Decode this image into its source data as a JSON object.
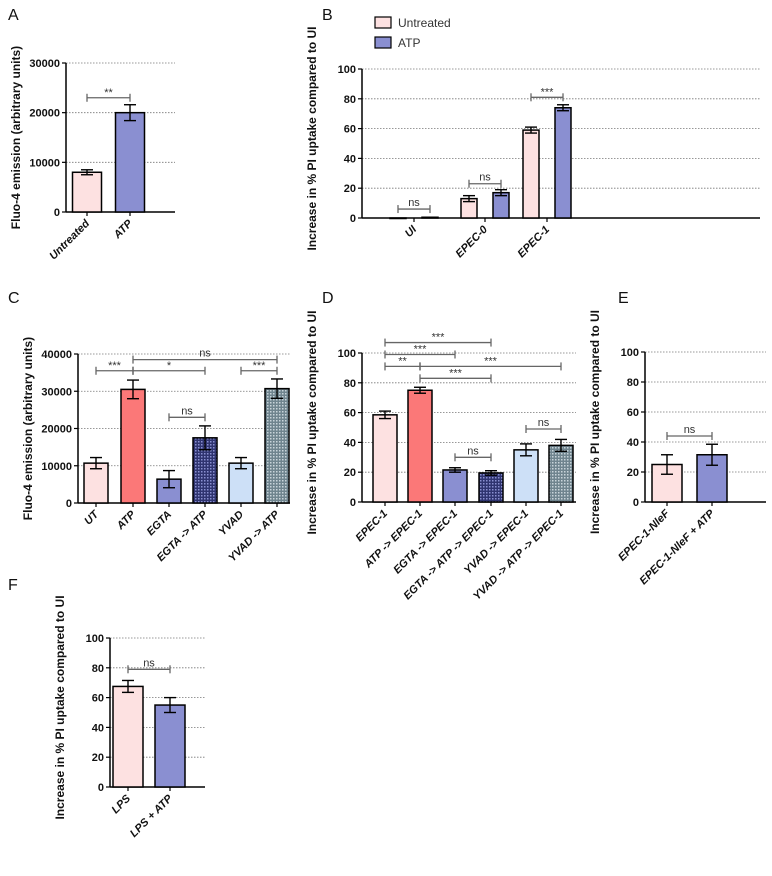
{
  "colors": {
    "pink": "#fde1e1",
    "blue": "#8a8fd1",
    "red": "#fb7878",
    "navy_pattern": "#2f3470",
    "lightblue": "#cde0f7",
    "gray_pattern": "#7f96a0",
    "grid": "#777777",
    "bracket": "#666666"
  },
  "chart_data": [
    {
      "panel": "A",
      "type": "bar",
      "ylabel": "Fluo-4 emission (arbitrary units)",
      "ylim": [
        0,
        30000
      ],
      "yticks": [
        0,
        10000,
        20000,
        30000
      ],
      "grid": true,
      "categories": [
        "Untreated",
        "ATP"
      ],
      "values": [
        8000,
        20000
      ],
      "errors": [
        500,
        1600
      ],
      "fills": [
        "pink",
        "blue"
      ],
      "significance": [
        {
          "from": 0,
          "to": 1,
          "label": "**",
          "y": 23000
        }
      ]
    },
    {
      "panel": "B",
      "type": "bar",
      "ylabel": "Increase in % PI uptake compared to UI",
      "ylim": [
        0,
        100
      ],
      "yticks": [
        0,
        20,
        40,
        60,
        80,
        100
      ],
      "grid": true,
      "legend": {
        "placement": "top",
        "entries": [
          {
            "label": "Untreated",
            "fill": "pink"
          },
          {
            "label": "ATP",
            "fill": "blue"
          }
        ]
      },
      "categories": [
        "UI",
        "EPEC-0",
        "EPEC-1"
      ],
      "series": [
        {
          "name": "Untreated",
          "values": [
            0,
            13,
            59
          ],
          "errors": [
            0,
            2,
            2
          ],
          "fill": "pink"
        },
        {
          "name": "ATP",
          "values": [
            0.5,
            17,
            74
          ],
          "errors": [
            0,
            2,
            2
          ],
          "fill": "blue"
        }
      ],
      "significance": [
        {
          "group": 0,
          "label": "ns",
          "y": 6
        },
        {
          "group": 1,
          "label": "ns",
          "y": 23
        },
        {
          "group": 2,
          "label": "***",
          "y": 81
        }
      ]
    },
    {
      "panel": "C",
      "type": "bar",
      "ylabel": "Fluo-4 emission (arbitrary units)",
      "ylim": [
        0,
        40000
      ],
      "yticks": [
        0,
        10000,
        20000,
        30000,
        40000
      ],
      "grid": true,
      "categories": [
        "UT",
        "ATP",
        "EGTA",
        "EGTA -> ATP",
        "YVAD",
        "YVAD -> ATP"
      ],
      "values": [
        10700,
        30500,
        6400,
        17500,
        10700,
        30700
      ],
      "errors": [
        1500,
        2500,
        2300,
        3200,
        1500,
        2600
      ],
      "fills": [
        "pink",
        "red",
        "blue",
        "navy_pattern",
        "lightblue",
        "gray_pattern"
      ],
      "significance": [
        {
          "from": 0,
          "to": 1,
          "label": "***",
          "y": 35500
        },
        {
          "from": 1,
          "to": 3,
          "label": "*",
          "y": 35500
        },
        {
          "from": 2,
          "to": 3,
          "label": "ns",
          "y": 23000
        },
        {
          "from": 4,
          "to": 5,
          "label": "***",
          "y": 35500
        },
        {
          "from": 1,
          "to": 5,
          "label": "ns",
          "y": 38500
        }
      ]
    },
    {
      "panel": "D",
      "type": "bar",
      "ylabel": "Increase in % PI uptake compared to UI",
      "ylim": [
        0,
        100
      ],
      "yticks": [
        0,
        20,
        40,
        60,
        80,
        100
      ],
      "grid": true,
      "categories": [
        "EPEC-1",
        "ATP -> EPEC-1",
        "EGTA -> EPEC-1",
        "EGTA -> ATP -> EPEC-1",
        "YVAD -> EPEC-1",
        "YVAD -> ATP -> EPEC-1"
      ],
      "values": [
        58.5,
        75,
        21.5,
        19.5,
        35,
        38
      ],
      "errors": [
        2.5,
        2,
        1.5,
        1.5,
        4,
        4
      ],
      "fills": [
        "pink",
        "red",
        "blue",
        "navy_pattern",
        "lightblue",
        "gray_pattern"
      ],
      "significance": [
        {
          "from": 0,
          "to": 3,
          "label": "***",
          "y": 107
        },
        {
          "from": 0,
          "to": 2,
          "label": "***",
          "y": 99
        },
        {
          "from": 0,
          "to": 1,
          "label": "**",
          "y": 91
        },
        {
          "from": 1,
          "to": 5,
          "label": "***",
          "y": 91
        },
        {
          "from": 1,
          "to": 3,
          "label": "***",
          "y": 83
        },
        {
          "from": 2,
          "to": 3,
          "label": "ns",
          "y": 30
        },
        {
          "from": 4,
          "to": 5,
          "label": "ns",
          "y": 49
        }
      ]
    },
    {
      "panel": "E",
      "type": "bar",
      "ylabel": "Increase in % PI uptake compared to UI",
      "ylim": [
        0,
        100
      ],
      "yticks": [
        0,
        20,
        40,
        60,
        80,
        100
      ],
      "grid": true,
      "categories": [
        "EPEC-1-NleF",
        "EPEC-1-NleF + ATP"
      ],
      "values": [
        25,
        31.5
      ],
      "errors": [
        6.5,
        7
      ],
      "fills": [
        "pink",
        "blue"
      ],
      "significance": [
        {
          "from": 0,
          "to": 1,
          "label": "ns",
          "y": 44
        }
      ]
    },
    {
      "panel": "F",
      "type": "bar",
      "ylabel": "Increase in % PI uptake compared to UI",
      "ylim": [
        0,
        100
      ],
      "yticks": [
        0,
        20,
        40,
        60,
        80,
        100
      ],
      "grid": true,
      "categories": [
        "LPS",
        "LPS + ATP"
      ],
      "values": [
        67.5,
        55
      ],
      "errors": [
        4,
        5
      ],
      "fills": [
        "pink",
        "blue"
      ],
      "significance": [
        {
          "from": 0,
          "to": 1,
          "label": "ns",
          "y": 79
        }
      ]
    }
  ]
}
